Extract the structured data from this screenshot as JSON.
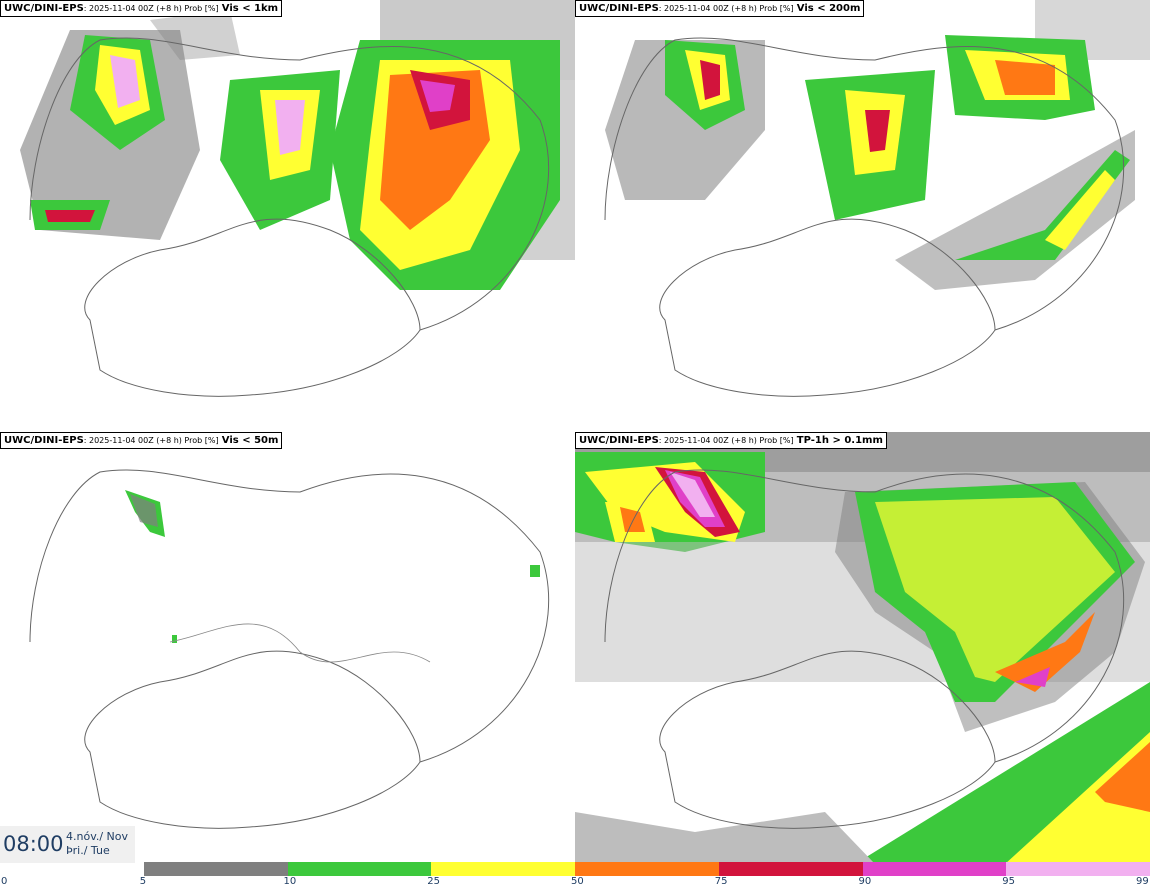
{
  "panels": [
    {
      "model": "UWC/DINI-EPS",
      "meta": ": 2025-11-04 00Z (+8 h) Prob [%]",
      "param": "Vis < 1km"
    },
    {
      "model": "UWC/DINI-EPS",
      "meta": ": 2025-11-04 00Z (+8 h) Prob [%]",
      "param": "Vis < 200m"
    },
    {
      "model": "UWC/DINI-EPS",
      "meta": ": 2025-11-04 00Z (+8 h) Prob [%]",
      "param": "Vis < 50m"
    },
    {
      "model": "UWC/DINI-EPS",
      "meta": ": 2025-11-04 00Z (+8 h) Prob [%]",
      "param": "TP-1h > 0.1mm"
    }
  ],
  "valid_time": {
    "clock": "08:00",
    "date_line1": "4.nóv./ Nov",
    "date_line2": "Þri./ Tue"
  },
  "colorbar": {
    "ticks": [
      "0",
      "5",
      "10",
      "25",
      "50",
      "75",
      "90",
      "95",
      "99"
    ],
    "colors": [
      "#ffffff",
      "#bdbdbd",
      "#7f7f7f",
      "#3cc83c",
      "#ffff32",
      "#ff7814",
      "#d2143c",
      "#e040c8",
      "#f2b0f0"
    ]
  }
}
